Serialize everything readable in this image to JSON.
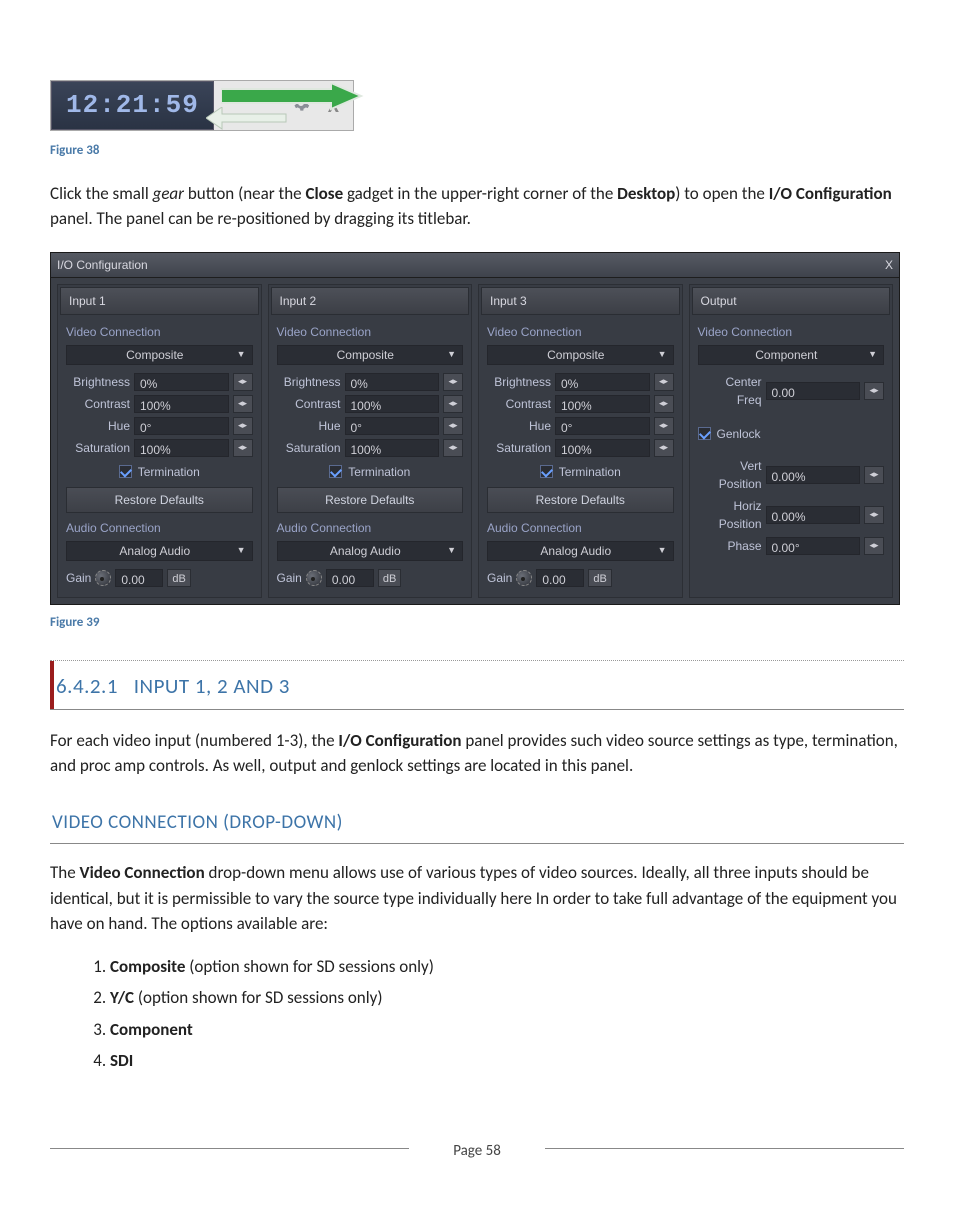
{
  "figure_top": {
    "timestamp": "12:21:59",
    "gear_icon": "gear-icon",
    "close_label": "X",
    "arrow_fill": "#3aa84a",
    "arrow_stroke": "#dfe8df",
    "caption": "Figure 38"
  },
  "intro_para": {
    "pre_gear": "Click the small ",
    "gear_word": "gear",
    "mid1": " button (near the ",
    "close_word": "Close",
    "mid2": " gadget in the upper-right corner of the ",
    "desktop_word": "Desktop",
    "mid3": ") to open the ",
    "io_word": "I/O Configuration",
    "tail": " panel. The panel can be re-positioned by dragging its titlebar."
  },
  "io_panel": {
    "title": "I/O Configuration",
    "close": "X",
    "bg": "#3b3f47",
    "titlebar_bg_top": "#565a63",
    "titlebar_bg_bot": "#3f434c",
    "col_bg": "#383c44",
    "field_bg": "#2a2d34",
    "label_color": "#9aa4c8",
    "text_color": "#cfcfd6",
    "inputs": [
      {
        "name": "Input 1",
        "video_label": "Video Connection",
        "video_sel": "Composite",
        "brightness_label": "Brightness",
        "brightness": "0%",
        "contrast_label": "Contrast",
        "contrast": "100%",
        "hue_label": "Hue",
        "hue": "0°",
        "saturation_label": "Saturation",
        "saturation": "100%",
        "termination_label": "Termination",
        "restore_label": "Restore Defaults",
        "audio_label": "Audio Connection",
        "audio_sel": "Analog Audio",
        "gain_label": "Gain",
        "gain": "0.00",
        "gain_unit": "dB"
      },
      {
        "name": "Input 2",
        "video_label": "Video Connection",
        "video_sel": "Composite",
        "brightness_label": "Brightness",
        "brightness": "0%",
        "contrast_label": "Contrast",
        "contrast": "100%",
        "hue_label": "Hue",
        "hue": "0°",
        "saturation_label": "Saturation",
        "saturation": "100%",
        "termination_label": "Termination",
        "restore_label": "Restore Defaults",
        "audio_label": "Audio Connection",
        "audio_sel": "Analog Audio",
        "gain_label": "Gain",
        "gain": "0.00",
        "gain_unit": "dB"
      },
      {
        "name": "Input 3",
        "video_label": "Video Connection",
        "video_sel": "Composite",
        "brightness_label": "Brightness",
        "brightness": "0%",
        "contrast_label": "Contrast",
        "contrast": "100%",
        "hue_label": "Hue",
        "hue": "0°",
        "saturation_label": "Saturation",
        "saturation": "100%",
        "termination_label": "Termination",
        "restore_label": "Restore Defaults",
        "audio_label": "Audio Connection",
        "audio_sel": "Analog Audio",
        "gain_label": "Gain",
        "gain": "0.00",
        "gain_unit": "dB"
      }
    ],
    "output": {
      "name": "Output",
      "video_label": "Video Connection",
      "video_sel": "Component",
      "center_freq_label": "Center Freq",
      "center_freq": "0.00",
      "genlock_label": "Genlock",
      "vert_label": "Vert Position",
      "vert": "0.00%",
      "horiz_label": "Horiz Position",
      "horiz": "0.00%",
      "phase_label": "Phase",
      "phase": "0.00°"
    }
  },
  "figure_panel_caption": "Figure 39",
  "section": {
    "number": "6.4.2.1",
    "title": "INPUT 1, 2 AND 3"
  },
  "section_para": {
    "p1a": "For each video input (numbered 1-3), the ",
    "p1b": "I/O Configuration",
    "p1c": " panel provides such video source settings as type, termination, and proc amp controls.  As well, output and genlock settings are located in this panel."
  },
  "subsection": {
    "title": "VIDEO CONNECTION (DROP-DOWN)"
  },
  "sub_para": {
    "a": "The ",
    "b": "Video Connection",
    "c": " drop-down menu allows use of various types of video sources.  Ideally, all three inputs should be identical, but it is permissible to vary the source type individually here In order to take full advantage of the equipment you have on hand.  The options available are:"
  },
  "options": [
    {
      "bold_num": false,
      "bold_text": "Composite",
      "tail": " (option shown for SD sessions only)"
    },
    {
      "bold_num": true,
      "bold_text": "Y/C",
      "tail": " (option shown for SD sessions only)"
    },
    {
      "bold_num": true,
      "bold_text": "Component",
      "tail": ""
    },
    {
      "bold_num": true,
      "bold_text": "SDI",
      "tail": ""
    }
  ],
  "footer": {
    "page": "Page 58"
  }
}
